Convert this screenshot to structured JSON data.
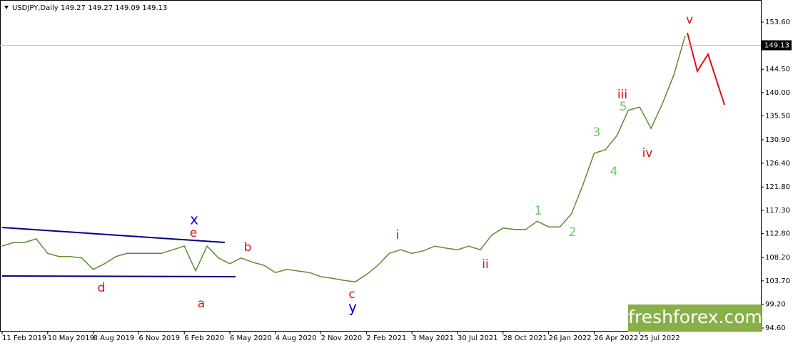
{
  "chart_data": {
    "type": "line",
    "title": "USDJPY,Daily  149.27 149.27 149.09 149.13",
    "categories": [
      "11 Feb 2019",
      null,
      null,
      null,
      "10 May 2019",
      null,
      null,
      null,
      "8 Aug 2019",
      null,
      null,
      null,
      "6 Nov 2019",
      null,
      null,
      null,
      "6 Feb 2020",
      null,
      null,
      null,
      "6 May 2020",
      null,
      null,
      null,
      "4 Aug 2020",
      null,
      null,
      null,
      "2 Nov 2020",
      null,
      null,
      null,
      "2 Feb 2021",
      null,
      null,
      null,
      "3 May 2021",
      null,
      null,
      null,
      "30 Jul 2021",
      null,
      null,
      null,
      "28 Oct 2021",
      null,
      null,
      null,
      "26 Jan 2022",
      null,
      null,
      null,
      "26 Apr 2022",
      null,
      null,
      null,
      "25 Jul 2022",
      null,
      null,
      null,
      null
    ],
    "series": [
      {
        "name": "USDJPY",
        "color": "#5e8c31",
        "values": [
          110.4,
          111.1,
          111.1,
          111.8,
          109.0,
          108.4,
          108.4,
          108.1,
          105.9,
          107.0,
          108.4,
          109.0,
          109.0,
          109.0,
          109.0,
          109.7,
          110.4,
          105.6,
          110.4,
          108.1,
          107.0,
          108.1,
          107.3,
          106.7,
          105.3,
          105.9,
          105.6,
          105.3,
          104.5,
          104.2,
          103.8,
          103.5,
          104.9,
          106.7,
          109.0,
          109.7,
          109.0,
          109.5,
          110.4,
          110.0,
          109.7,
          110.4,
          109.7,
          112.5,
          113.9,
          113.6,
          113.6,
          115.2,
          114.1,
          114.1,
          116.6,
          122.1,
          128.3,
          129.0,
          131.7,
          136.6,
          137.2,
          133.1,
          137.9,
          143.4,
          151.0
        ]
      }
    ],
    "ylim": [
      94.6,
      153.6
    ],
    "yticks": [
      {
        "value": 153.6,
        "label": "153.60"
      },
      {
        "value": 144.5,
        "label": "144.50"
      },
      {
        "value": 140.0,
        "label": "140.00"
      },
      {
        "value": 135.5,
        "label": "135.50"
      },
      {
        "value": 130.9,
        "label": "130.90"
      },
      {
        "value": 126.4,
        "label": "126.40"
      },
      {
        "value": 121.8,
        "label": "121.80"
      },
      {
        "value": 117.3,
        "label": "117.30"
      },
      {
        "value": 112.8,
        "label": "112.80"
      },
      {
        "value": 108.2,
        "label": "108.20"
      },
      {
        "value": 103.7,
        "label": "103.70"
      },
      {
        "value": 99.2,
        "label": "99.20"
      },
      {
        "value": 94.6,
        "label": "94.60"
      }
    ],
    "current_price": 149.13,
    "annotations": [
      {
        "text": "x",
        "color": "#0000ee"
      },
      {
        "text": "e",
        "color": "#dd1111"
      },
      {
        "text": "a",
        "color": "#dd1111"
      },
      {
        "text": "d",
        "color": "#dd1111"
      },
      {
        "text": "b",
        "color": "#dd1111"
      },
      {
        "text": "y",
        "color": "#0000ee"
      },
      {
        "text": "c",
        "color": "#dd1111"
      },
      {
        "text": "i",
        "color": "#dd1111"
      },
      {
        "text": "ii",
        "color": "#dd1111"
      },
      {
        "text": "iii",
        "color": "#dd1111"
      },
      {
        "text": "iv",
        "color": "#dd1111"
      },
      {
        "text": "v",
        "color": "#dd1111"
      },
      {
        "text": "1",
        "color": "#66cc66"
      },
      {
        "text": "2",
        "color": "#66cc66"
      },
      {
        "text": "3",
        "color": "#66cc66"
      },
      {
        "text": "4",
        "color": "#66cc66"
      },
      {
        "text": "5",
        "color": "#66cc66"
      }
    ],
    "watermark": "freshforex.com"
  }
}
